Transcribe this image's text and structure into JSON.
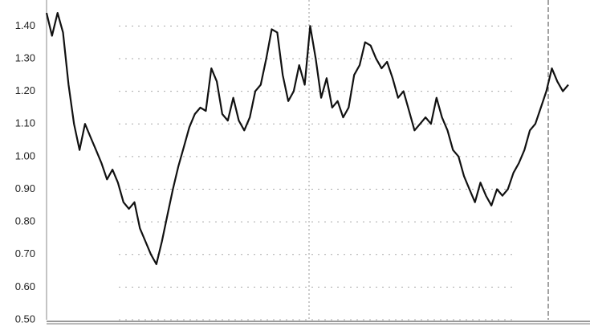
{
  "chart_data": {
    "type": "line",
    "categories": [
      null,
      null,
      null,
      null,
      null,
      null,
      null,
      null,
      null,
      null,
      null,
      null,
      null,
      null,
      null,
      null,
      null,
      null,
      null,
      null,
      null,
      null,
      null,
      null,
      null,
      null,
      null,
      null,
      null,
      null,
      null,
      null,
      null,
      null,
      null,
      null,
      null,
      null,
      null,
      null,
      null,
      null,
      null,
      null,
      null,
      null,
      null,
      null,
      null,
      null,
      null,
      null,
      null,
      null,
      null,
      null,
      null,
      null,
      null,
      null,
      null,
      null,
      null,
      null,
      null,
      null,
      null,
      null,
      null,
      null,
      null,
      null,
      null,
      null,
      null,
      null,
      null,
      null,
      null,
      null,
      null,
      null,
      null,
      null,
      null,
      null,
      null,
      null,
      null,
      null,
      null,
      null,
      null,
      null,
      null,
      null
    ],
    "series": [
      {
        "color": "#111111",
        "values": [
          1.44,
          1.37,
          1.44,
          1.38,
          1.22,
          1.1,
          1.02,
          1.1,
          1.06,
          1.02,
          0.98,
          0.93,
          0.96,
          0.92,
          0.86,
          0.84,
          0.86,
          0.78,
          0.74,
          0.7,
          0.67,
          0.74,
          0.82,
          0.9,
          0.97,
          1.03,
          1.09,
          1.13,
          1.15,
          1.14,
          1.27,
          1.23,
          1.13,
          1.11,
          1.18,
          1.11,
          1.08,
          1.12,
          1.2,
          1.22,
          1.3,
          1.39,
          1.38,
          1.25,
          1.17,
          1.2,
          1.28,
          1.22,
          1.4,
          1.3,
          1.18,
          1.24,
          1.15,
          1.17,
          1.12,
          1.15,
          1.25,
          1.28,
          1.35,
          1.34,
          1.3,
          1.27,
          1.29,
          1.24,
          1.18,
          1.2,
          1.14,
          1.08,
          1.1,
          1.12,
          1.1,
          1.18,
          1.12,
          1.08,
          1.02,
          1.0,
          0.94,
          0.9,
          0.86,
          0.92,
          0.88,
          0.85,
          0.9,
          0.88,
          0.9,
          0.95,
          0.98,
          1.02,
          1.08,
          1.1,
          1.15,
          1.2,
          1.27,
          1.23,
          1.2,
          1.22
        ]
      }
    ],
    "ylim": [
      0.5,
      1.45
    ],
    "yticks": [
      {
        "value": 0.5,
        "label": "0.50"
      },
      {
        "value": 0.6,
        "label": "0.60"
      },
      {
        "value": 0.7,
        "label": "0.70"
      },
      {
        "value": 0.8,
        "label": "0.80"
      },
      {
        "value": 0.9,
        "label": "0.90"
      },
      {
        "value": 1.0,
        "label": "1.00"
      },
      {
        "value": 1.1,
        "label": "1.10"
      },
      {
        "value": 1.2,
        "label": "1.20"
      },
      {
        "value": 1.3,
        "label": "1.30"
      },
      {
        "value": 1.4,
        "label": "1.40"
      }
    ],
    "grid": true
  }
}
